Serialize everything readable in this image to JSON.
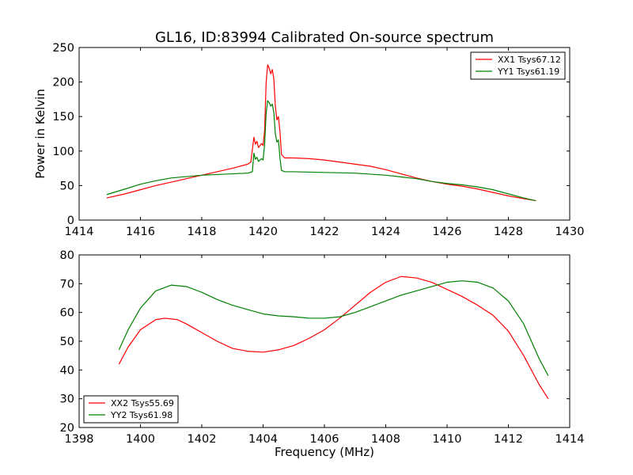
{
  "chart_data": [
    {
      "type": "line",
      "title": "GL16, ID:83994 Calibrated On-source spectrum",
      "xlabel": "",
      "ylabel": "Power in Kelvin",
      "xlim": [
        1414,
        1430
      ],
      "ylim": [
        0,
        250
      ],
      "xticks": [
        "1414",
        "1416",
        "1418",
        "1420",
        "1422",
        "1424",
        "1426",
        "1428",
        "1430"
      ],
      "yticks": [
        "0",
        "50",
        "100",
        "150",
        "200",
        "250"
      ],
      "legend_position": "top-right",
      "series": [
        {
          "name": "XX1 Tsys67.12",
          "color": "#ff0000",
          "points": [
            [
              1414.9,
              32
            ],
            [
              1415.5,
              38
            ],
            [
              1416,
              44
            ],
            [
              1416.5,
              50
            ],
            [
              1417,
              55
            ],
            [
              1417.5,
              60
            ],
            [
              1418,
              65
            ],
            [
              1418.5,
              70
            ],
            [
              1419,
              75
            ],
            [
              1419.5,
              81
            ],
            [
              1419.6,
              84
            ],
            [
              1419.7,
              120
            ],
            [
              1419.75,
              110
            ],
            [
              1419.8,
              114
            ],
            [
              1419.85,
              105
            ],
            [
              1419.95,
              111
            ],
            [
              1420.0,
              108
            ],
            [
              1420.05,
              130
            ],
            [
              1420.1,
              200
            ],
            [
              1420.15,
              225
            ],
            [
              1420.2,
              220
            ],
            [
              1420.25,
              212
            ],
            [
              1420.3,
              218
            ],
            [
              1420.35,
              205
            ],
            [
              1420.4,
              165
            ],
            [
              1420.45,
              145
            ],
            [
              1420.5,
              150
            ],
            [
              1420.55,
              128
            ],
            [
              1420.6,
              95
            ],
            [
              1420.7,
              90
            ],
            [
              1421,
              90
            ],
            [
              1421.5,
              89
            ],
            [
              1422,
              87
            ],
            [
              1422.5,
              84
            ],
            [
              1423,
              81
            ],
            [
              1423.5,
              78
            ],
            [
              1424,
              73
            ],
            [
              1424.5,
              67
            ],
            [
              1425,
              61
            ],
            [
              1425.5,
              56
            ],
            [
              1426,
              52
            ],
            [
              1426.5,
              49
            ],
            [
              1427,
              45
            ],
            [
              1427.5,
              40
            ],
            [
              1428,
              35
            ],
            [
              1428.5,
              31
            ],
            [
              1428.9,
              28
            ]
          ]
        },
        {
          "name": "YY1 Tsys61.19",
          "color": "#008000",
          "points": [
            [
              1414.9,
              37
            ],
            [
              1415.5,
              45
            ],
            [
              1416,
              52
            ],
            [
              1416.5,
              57
            ],
            [
              1417,
              61
            ],
            [
              1417.5,
              63
            ],
            [
              1418,
              65
            ],
            [
              1418.5,
              66
            ],
            [
              1419,
              67
            ],
            [
              1419.5,
              68
            ],
            [
              1419.65,
              70
            ],
            [
              1419.7,
              97
            ],
            [
              1419.75,
              88
            ],
            [
              1419.8,
              91
            ],
            [
              1419.85,
              85
            ],
            [
              1419.95,
              89
            ],
            [
              1420.0,
              87
            ],
            [
              1420.05,
              110
            ],
            [
              1420.1,
              155
            ],
            [
              1420.15,
              173
            ],
            [
              1420.2,
              170
            ],
            [
              1420.25,
              165
            ],
            [
              1420.3,
              168
            ],
            [
              1420.35,
              156
            ],
            [
              1420.4,
              125
            ],
            [
              1420.45,
              113
            ],
            [
              1420.5,
              116
            ],
            [
              1420.55,
              90
            ],
            [
              1420.6,
              72
            ],
            [
              1420.7,
              70
            ],
            [
              1421,
              70
            ],
            [
              1422,
              69
            ],
            [
              1423,
              68
            ],
            [
              1424,
              65
            ],
            [
              1425,
              60
            ],
            [
              1425.5,
              56
            ],
            [
              1426,
              53
            ],
            [
              1426.5,
              51
            ],
            [
              1427,
              48
            ],
            [
              1427.5,
              44
            ],
            [
              1428,
              38
            ],
            [
              1428.5,
              32
            ],
            [
              1428.9,
              28
            ]
          ]
        }
      ]
    },
    {
      "type": "line",
      "title": "",
      "xlabel": "Frequency (MHz)",
      "ylabel": "",
      "xlim": [
        1398,
        1414
      ],
      "ylim": [
        20,
        80
      ],
      "xticks": [
        "1398",
        "1400",
        "1402",
        "1404",
        "1406",
        "1408",
        "1410",
        "1412",
        "1414"
      ],
      "yticks": [
        "20",
        "30",
        "40",
        "50",
        "60",
        "70",
        "80"
      ],
      "legend_position": "bottom-left",
      "series": [
        {
          "name": "XX2 Tsys55.69",
          "color": "#ff0000",
          "points": [
            [
              1399.3,
              42
            ],
            [
              1399.6,
              48
            ],
            [
              1400,
              54
            ],
            [
              1400.5,
              57.5
            ],
            [
              1400.8,
              58
            ],
            [
              1401.2,
              57.5
            ],
            [
              1401.5,
              56
            ],
            [
              1402,
              53
            ],
            [
              1402.5,
              50
            ],
            [
              1403,
              47.5
            ],
            [
              1403.5,
              46.5
            ],
            [
              1404,
              46.2
            ],
            [
              1404.5,
              47
            ],
            [
              1405,
              48.5
            ],
            [
              1405.5,
              51
            ],
            [
              1406,
              54
            ],
            [
              1406.5,
              58
            ],
            [
              1407,
              62.5
            ],
            [
              1407.5,
              67
            ],
            [
              1408,
              70.5
            ],
            [
              1408.5,
              72.5
            ],
            [
              1409,
              72
            ],
            [
              1409.5,
              70.5
            ],
            [
              1410,
              68
            ],
            [
              1410.5,
              65.5
            ],
            [
              1411,
              62.5
            ],
            [
              1411.5,
              59
            ],
            [
              1412,
              53.5
            ],
            [
              1412.5,
              45
            ],
            [
              1413,
              35
            ],
            [
              1413.3,
              30
            ]
          ]
        },
        {
          "name": "YY2 Tsys61.98",
          "color": "#008000",
          "points": [
            [
              1399.3,
              47
            ],
            [
              1399.6,
              54
            ],
            [
              1400,
              61.5
            ],
            [
              1400.5,
              67.5
            ],
            [
              1401,
              69.5
            ],
            [
              1401.5,
              69
            ],
            [
              1402,
              67
            ],
            [
              1402.5,
              64.5
            ],
            [
              1403,
              62.5
            ],
            [
              1403.5,
              61
            ],
            [
              1404,
              59.5
            ],
            [
              1404.5,
              58.8
            ],
            [
              1405,
              58.5
            ],
            [
              1405.5,
              58
            ],
            [
              1406,
              58
            ],
            [
              1406.5,
              58.5
            ],
            [
              1407,
              60
            ],
            [
              1407.5,
              62
            ],
            [
              1408,
              64
            ],
            [
              1408.5,
              66
            ],
            [
              1409,
              67.5
            ],
            [
              1409.5,
              69
            ],
            [
              1410,
              70.5
            ],
            [
              1410.5,
              71
            ],
            [
              1411,
              70.5
            ],
            [
              1411.5,
              68.5
            ],
            [
              1412,
              64
            ],
            [
              1412.5,
              56
            ],
            [
              1413,
              44
            ],
            [
              1413.3,
              38
            ]
          ]
        }
      ]
    }
  ]
}
